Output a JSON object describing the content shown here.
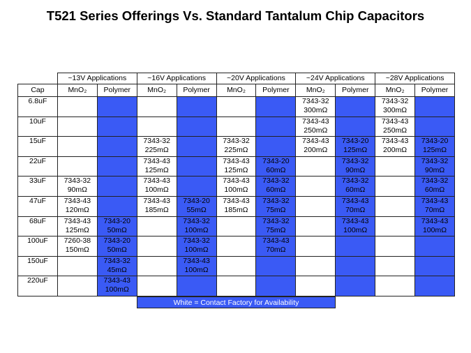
{
  "title": "T521 Series Offerings Vs. Standard Tantalum Chip Capacitors",
  "table": {
    "cap_header": "Cap",
    "groups": [
      {
        "label": "~13V Applications",
        "columns": [
          "MnO₂",
          "Polymer"
        ]
      },
      {
        "label": "~16V Applications",
        "columns": [
          "MnO₂",
          "Polymer"
        ]
      },
      {
        "label": "~20V Applications",
        "columns": [
          "MnO₂",
          "Polymer"
        ]
      },
      {
        "label": "~24V Applications",
        "columns": [
          "MnO₂",
          "Polymer"
        ]
      },
      {
        "label": "~28V Applications",
        "columns": [
          "MnO₂",
          "Polymer"
        ]
      }
    ],
    "rows": [
      {
        "cap": "6.8uF",
        "cells": [
          null,
          null,
          null,
          null,
          null,
          null,
          [
            "7343-32",
            "300mΩ"
          ],
          null,
          [
            "7343-32",
            "300mΩ"
          ],
          null
        ]
      },
      {
        "cap": "10uF",
        "cells": [
          null,
          null,
          null,
          null,
          null,
          null,
          [
            "7343-43",
            "250mΩ"
          ],
          null,
          [
            "7343-43",
            "250mΩ"
          ],
          null
        ]
      },
      {
        "cap": "15uF",
        "cells": [
          null,
          null,
          [
            "7343-32",
            "225mΩ"
          ],
          null,
          [
            "7343-32",
            "225mΩ"
          ],
          null,
          [
            "7343-43",
            "200mΩ"
          ],
          [
            "7343-20",
            "125mΩ"
          ],
          [
            "7343-43",
            "200mΩ"
          ],
          [
            "7343-20",
            "125mΩ"
          ]
        ]
      },
      {
        "cap": "22uF",
        "cells": [
          null,
          null,
          [
            "7343-43",
            "125mΩ"
          ],
          null,
          [
            "7343-43",
            "125mΩ"
          ],
          [
            "7343-20",
            "60mΩ"
          ],
          null,
          [
            "7343-32",
            "90mΩ"
          ],
          null,
          [
            "7343-32",
            "90mΩ"
          ]
        ]
      },
      {
        "cap": "33uF",
        "cells": [
          [
            "7343-32",
            "90mΩ"
          ],
          null,
          [
            "7343-43",
            "100mΩ"
          ],
          null,
          [
            "7343-43",
            "100mΩ"
          ],
          [
            "7343-32",
            "60mΩ"
          ],
          null,
          [
            "7343-32",
            "60mΩ"
          ],
          null,
          [
            "7343-32",
            "60mΩ"
          ]
        ]
      },
      {
        "cap": "47uF",
        "cells": [
          [
            "7343-43",
            "120mΩ"
          ],
          null,
          [
            "7343-43",
            "185mΩ"
          ],
          [
            "7343-20",
            "55mΩ"
          ],
          [
            "7343-43",
            "185mΩ"
          ],
          [
            "7343-32",
            "75mΩ"
          ],
          null,
          [
            "7343-43",
            "70mΩ"
          ],
          null,
          [
            "7343-43",
            "70mΩ"
          ]
        ]
      },
      {
        "cap": "68uF",
        "cells": [
          [
            "7343-43",
            "125mΩ"
          ],
          [
            "7343-20",
            "50mΩ"
          ],
          null,
          [
            "7343-32",
            "100mΩ"
          ],
          null,
          [
            "7343-32",
            "75mΩ"
          ],
          null,
          [
            "7343-43",
            "100mΩ"
          ],
          null,
          [
            "7343-43",
            "100mΩ"
          ]
        ]
      },
      {
        "cap": "100uF",
        "cells": [
          [
            "7260-38",
            "150mΩ"
          ],
          [
            "7343-20",
            "50mΩ"
          ],
          null,
          [
            "7343-32",
            "100mΩ"
          ],
          null,
          [
            "7343-43",
            "70mΩ"
          ],
          null,
          null,
          null,
          null
        ]
      },
      {
        "cap": "150uF",
        "cells": [
          null,
          [
            "7343-32",
            "45mΩ"
          ],
          null,
          [
            "7343-43",
            "100mΩ"
          ],
          null,
          null,
          null,
          null,
          null,
          null
        ]
      },
      {
        "cap": "220uF",
        "cells": [
          null,
          [
            "7343-43",
            "100mΩ"
          ],
          null,
          null,
          null,
          null,
          null,
          null,
          null,
          null
        ]
      }
    ],
    "footnote": "White = Contact Factory for Availability"
  }
}
